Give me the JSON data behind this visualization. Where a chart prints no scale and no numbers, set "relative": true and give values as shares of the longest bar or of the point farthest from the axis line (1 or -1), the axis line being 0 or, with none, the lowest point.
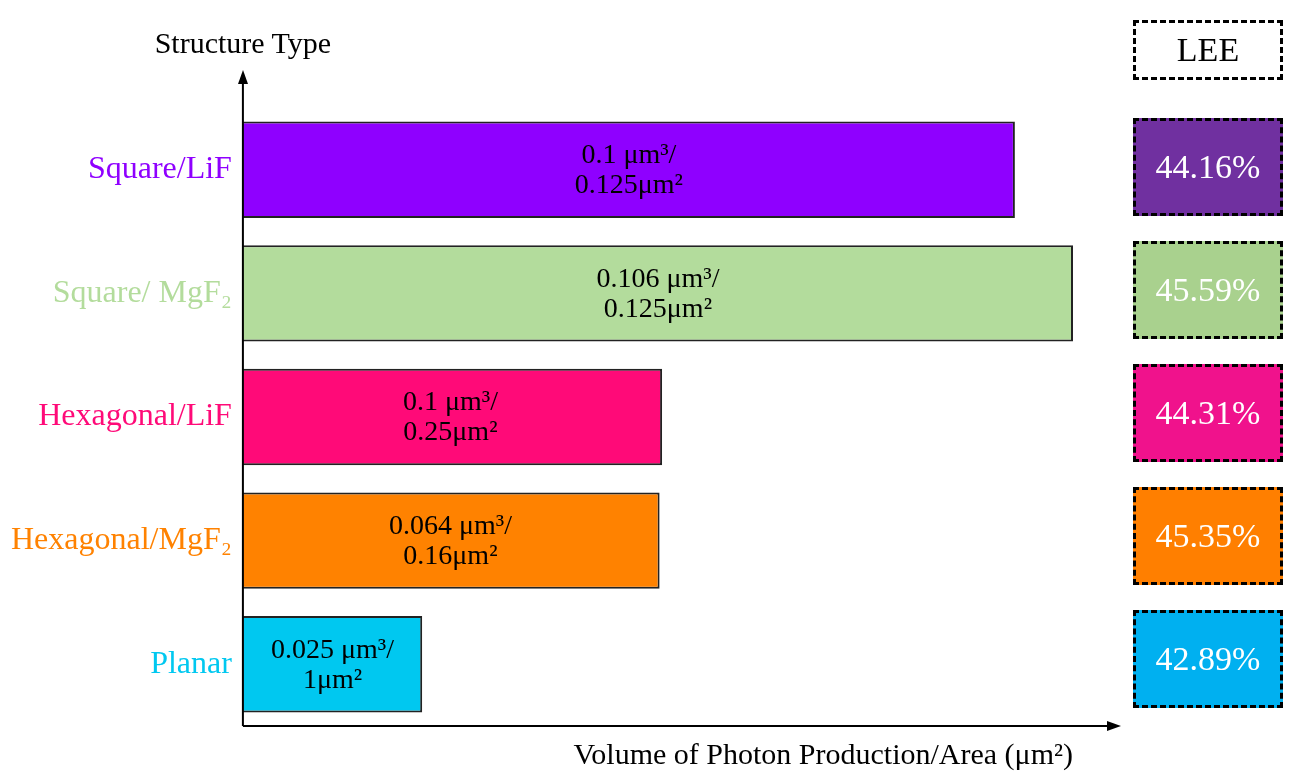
{
  "chart_data": [
    {
      "type": "bar",
      "orientation": "horizontal",
      "relative": true,
      "ylabel": "Structure Type",
      "xlabel": "Volume of Photon Production/Area (μm²)",
      "categories": [
        "Square/LiF",
        "Square/ MgF₂",
        "Hexagonal/LiF",
        "Hexagonal/MgF₂",
        "Planar"
      ],
      "values": [
        0.93,
        1,
        0.505,
        0.502,
        0.216
      ],
      "colors": [
        "#8f00ff",
        "#b3dc9c",
        "#ff0a78",
        "#ff8200",
        "#00c8f0"
      ],
      "annotations": [
        {
          "text": "0.1 μm³/0.125μm²",
          "x": 0.465,
          "y": "Square/LiF"
        },
        {
          "text": "0.106 μm³/0.125μm²",
          "x": 0.5,
          "y": "Square/ MgF₂"
        },
        {
          "text": "0.1 μm³/0.25μm²",
          "x": 0.25,
          "y": "Hexagonal/LiF"
        },
        {
          "text": "0.064 μm³/0.16μm²",
          "x": 0.25,
          "y": "Hexagonal/MgF₂"
        },
        {
          "text": "0.025 μm³/1μm²",
          "x": 0.108,
          "y": "Planar"
        }
      ],
      "grid": false,
      "legend": false
    },
    {
      "type": "other",
      "title": "LEE",
      "annotations": [
        "44.16%",
        "45.59%",
        "44.31%",
        "45.35%",
        "42.89%"
      ],
      "colors": [
        "#7030a0",
        "#a9d18e",
        "#f0128c",
        "#ff7f00",
        "#00b0f0"
      ]
    }
  ]
}
